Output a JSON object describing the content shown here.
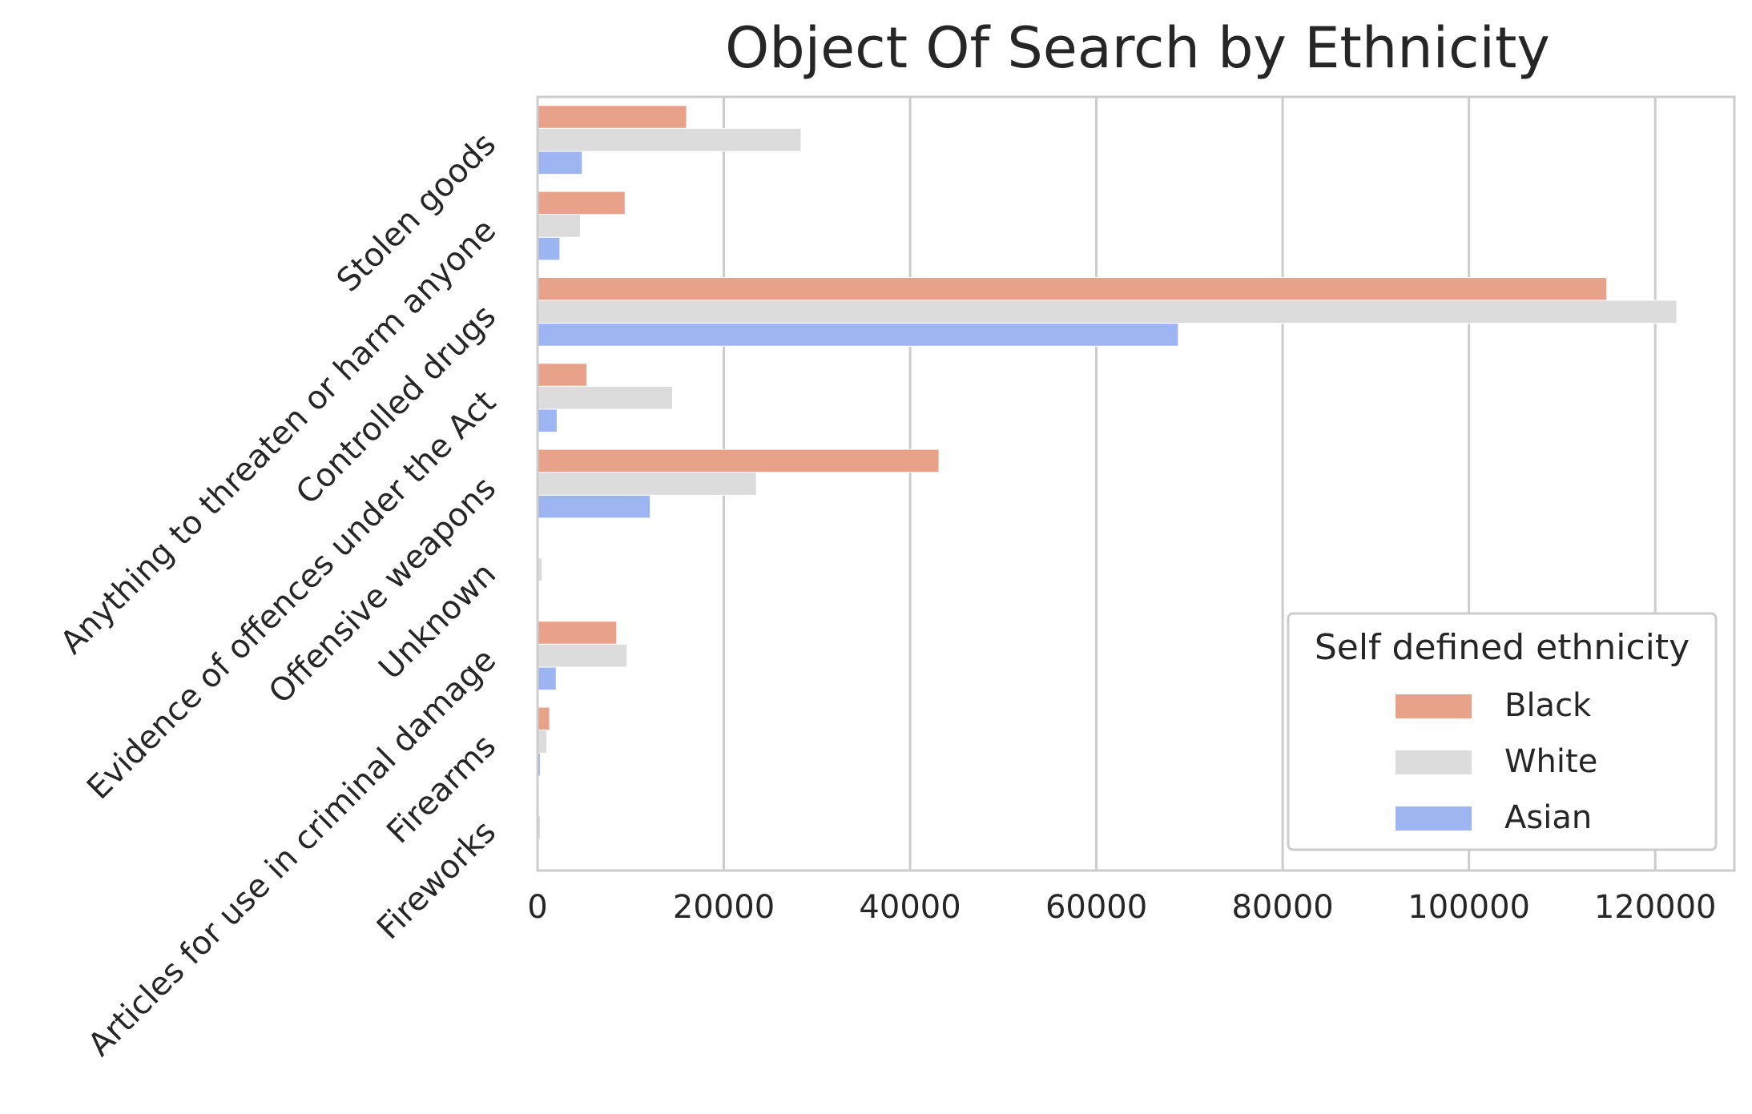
{
  "chart_data": {
    "type": "bar",
    "orientation": "horizontal",
    "title": "Object Of Search by Ethnicity",
    "xlabel": "",
    "ylabel": "",
    "categories": [
      "Stolen goods",
      "Anything to threaten or harm anyone",
      "Controlled drugs",
      "Evidence of offences under the Act",
      "Offensive weapons",
      "Unknown",
      "Articles for use in criminal damage",
      "Firearms",
      "Fireworks"
    ],
    "series": [
      {
        "name": "Black",
        "color": "#e8a28a",
        "values": [
          16000,
          9400,
          114800,
          5300,
          43100,
          0,
          8500,
          1300,
          100
        ]
      },
      {
        "name": "White",
        "color": "#dcdcdc",
        "values": [
          28300,
          4600,
          122300,
          14500,
          23500,
          500,
          9600,
          1000,
          300
        ]
      },
      {
        "name": "Asian",
        "color": "#9db6f2",
        "values": [
          4800,
          2400,
          68800,
          2100,
          12100,
          0,
          2000,
          300,
          0
        ]
      }
    ],
    "xticks": [
      0,
      20000,
      40000,
      60000,
      80000,
      100000,
      120000
    ],
    "xlim": [
      0,
      128500
    ],
    "grid": "vertical",
    "legend": {
      "title": "Self defined ethnicity",
      "position": "lower-right"
    }
  }
}
